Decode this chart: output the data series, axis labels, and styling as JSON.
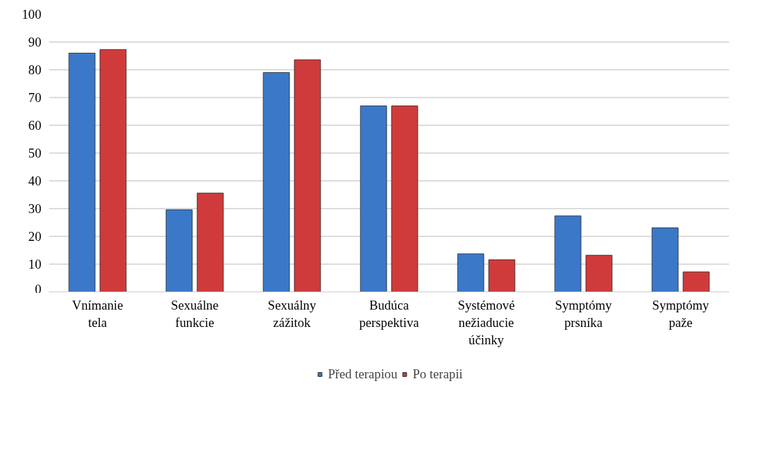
{
  "chart_data": {
    "type": "bar",
    "categories": [
      "Vnímanie tela",
      "Sexuálne funkcie",
      "Sexuálny zážitok",
      "Budúca perspektiva",
      "Systémové nežiaducie účinky",
      "Symptómy prsníka",
      "Symptómy paže"
    ],
    "series": [
      {
        "name": "Před terapiou",
        "color": "#3b78c8",
        "values": [
          86.0,
          29.6,
          79.0,
          67.0,
          13.7,
          27.4,
          23.1
        ]
      },
      {
        "name": "Po terapii",
        "color": "#cf3b3b",
        "values": [
          87.3,
          35.6,
          83.6,
          67.0,
          11.6,
          13.2,
          7.2
        ]
      }
    ],
    "ylim": [
      0,
      100
    ],
    "yticks": [
      0,
      10,
      20,
      30,
      40,
      50,
      60,
      70,
      80,
      90,
      100
    ],
    "grid": "y",
    "legend": "bottom"
  }
}
